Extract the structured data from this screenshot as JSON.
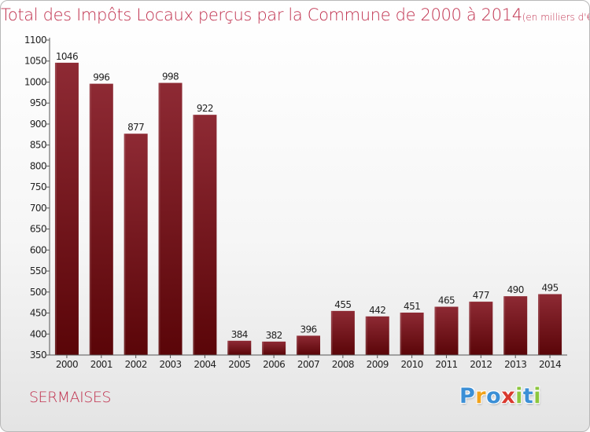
{
  "title": "Total des Impôts Locaux perçus par la Commune de 2000 à 2014",
  "title_unit": "(en milliers d'€)",
  "commune": "SERMAISES",
  "logo": {
    "text": "Proxiti",
    "letters": [
      {
        "ch": "P",
        "color": "#3b8fd6"
      },
      {
        "ch": "r",
        "color": "#f2a31b"
      },
      {
        "ch": "o",
        "color": "#3b8fd6"
      },
      {
        "ch": "x",
        "color": "#d93a2f"
      },
      {
        "ch": "i",
        "color": "#8cc63e"
      },
      {
        "ch": "t",
        "color": "#3b8fd6"
      },
      {
        "ch": "i",
        "color": "#8cc63e"
      }
    ]
  },
  "colors": {
    "title": "#c0324f",
    "bar_top": "#8e2a34",
    "bar_bottom": "#5a0508",
    "axis": "#555555",
    "text": "#222222"
  },
  "chart_data": {
    "type": "bar",
    "categories": [
      "2000",
      "2001",
      "2002",
      "2003",
      "2004",
      "2005",
      "2006",
      "2007",
      "2008",
      "2009",
      "2010",
      "2011",
      "2012",
      "2013",
      "2014"
    ],
    "values": [
      1046,
      996,
      877,
      998,
      922,
      384,
      382,
      396,
      455,
      442,
      451,
      465,
      477,
      490,
      495
    ],
    "ylim": [
      350,
      1100
    ],
    "yticks": [
      350,
      400,
      450,
      500,
      550,
      600,
      650,
      700,
      750,
      800,
      850,
      900,
      950,
      1000,
      1050,
      1100
    ],
    "data_labels": true,
    "grid": false
  }
}
